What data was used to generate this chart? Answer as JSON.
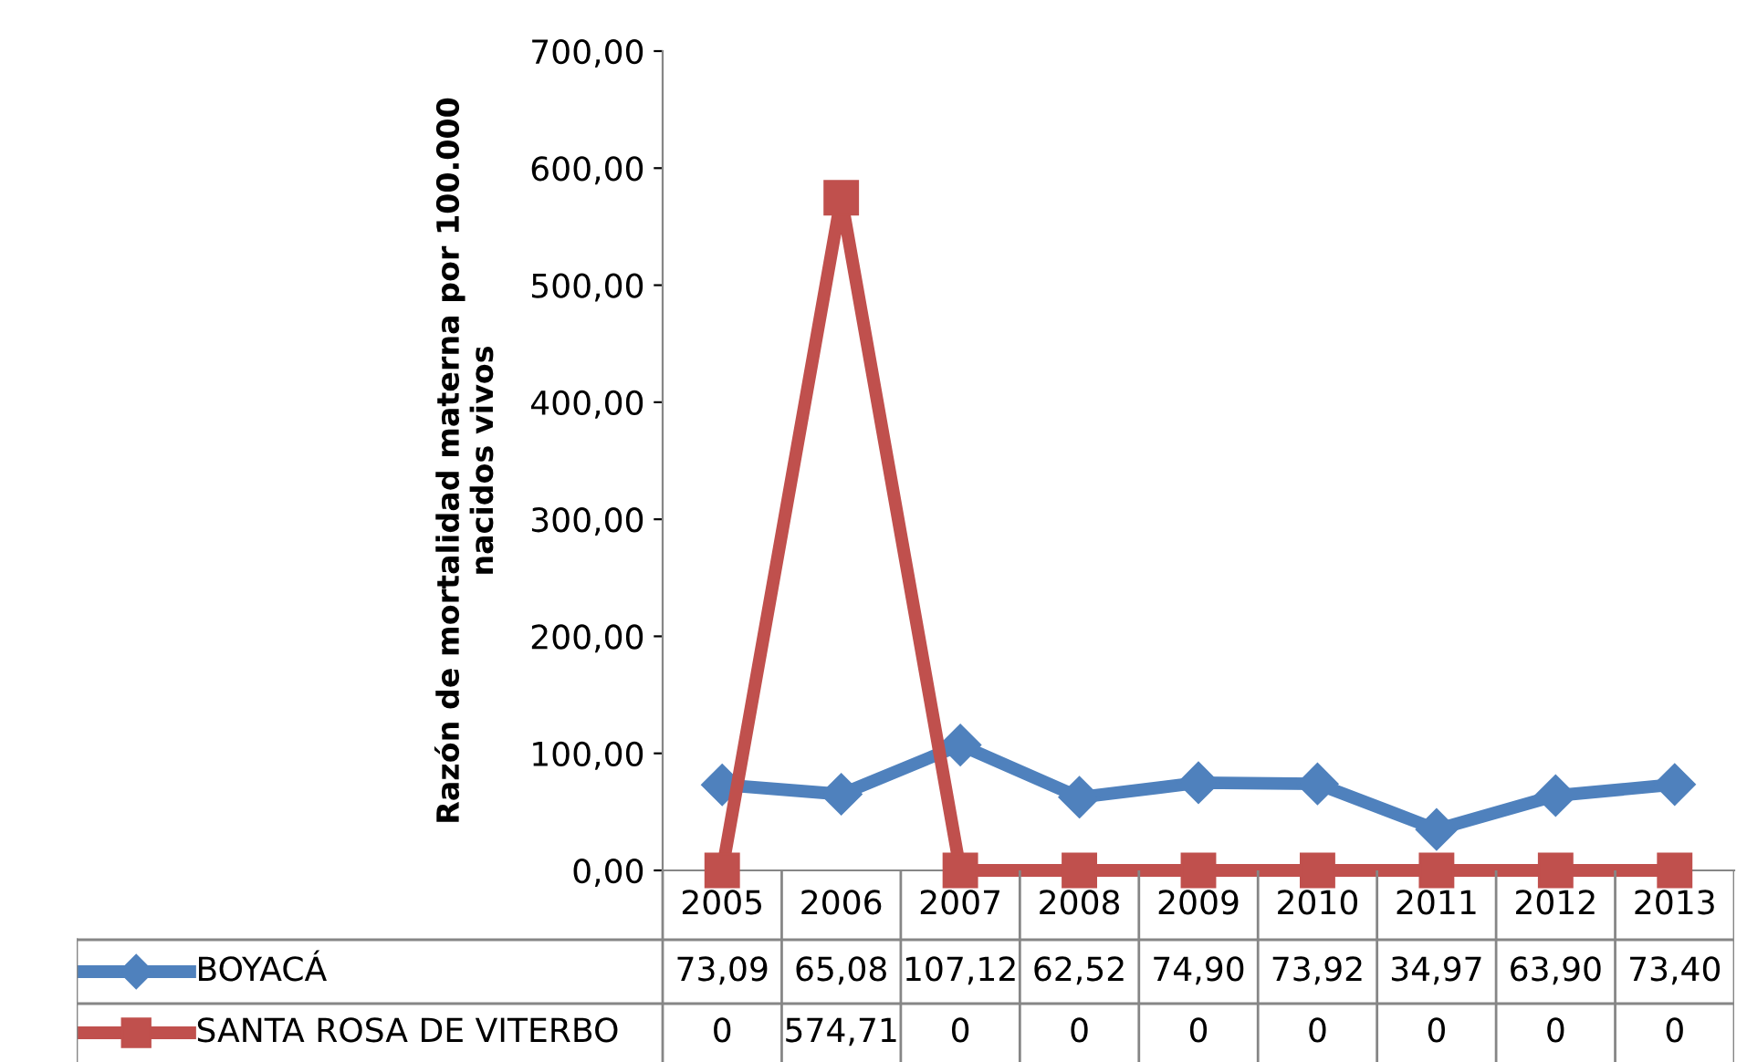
{
  "chart_data": {
    "type": "line",
    "ylabel": "Razón de mortalidad materna por 100.000\nnacidos vivos",
    "categories": [
      "2005",
      "2006",
      "2007",
      "2008",
      "2009",
      "2010",
      "2011",
      "2012",
      "2013"
    ],
    "series": [
      {
        "name": "BOYACÁ",
        "color": "#4f81bd",
        "marker": "diamond",
        "values": [
          73.09,
          65.08,
          107.12,
          62.52,
          74.9,
          73.92,
          34.97,
          63.9,
          73.4
        ],
        "value_labels": [
          "73,09",
          "65,08",
          "107,12",
          "62,52",
          "74,90",
          "73,92",
          "34,97",
          "63,90",
          "73,40"
        ]
      },
      {
        "name": "SANTA ROSA DE VITERBO",
        "color": "#c0504d",
        "marker": "square",
        "values": [
          0,
          574.71,
          0,
          0,
          0,
          0,
          0,
          0,
          0
        ],
        "value_labels": [
          "0",
          "574,71",
          "0",
          "0",
          "0",
          "0",
          "0",
          "0",
          "0"
        ]
      }
    ],
    "ylim": [
      0,
      700
    ],
    "yticks": [
      {
        "value": 0,
        "label": "0,00"
      },
      {
        "value": 100,
        "label": "100,00"
      },
      {
        "value": 200,
        "label": "200,00"
      },
      {
        "value": 300,
        "label": "300,00"
      },
      {
        "value": 400,
        "label": "400,00"
      },
      {
        "value": 500,
        "label": "500,00"
      },
      {
        "value": 600,
        "label": "600,00"
      },
      {
        "value": 700,
        "label": "700,00"
      }
    ],
    "grid": false,
    "line_style": "solid",
    "legend": "bottom"
  }
}
